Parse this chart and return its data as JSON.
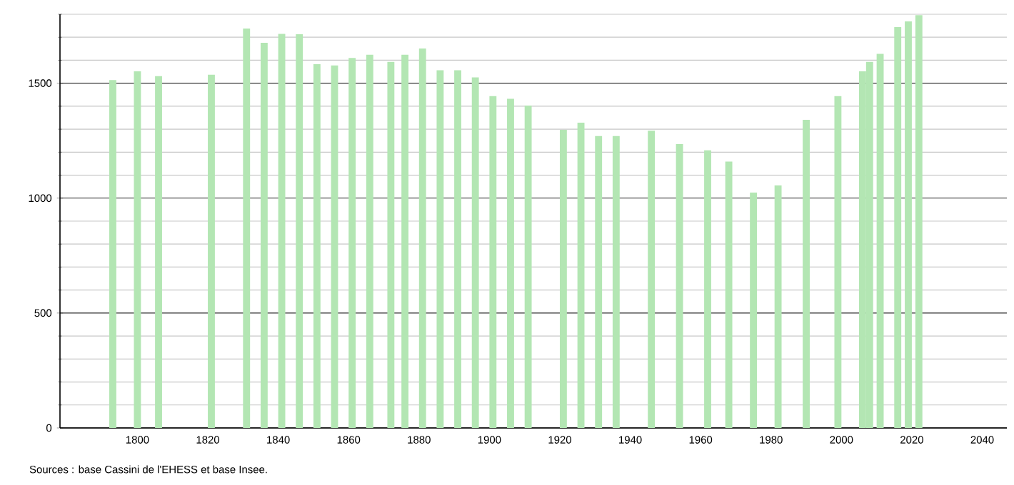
{
  "chart_data": {
    "type": "bar",
    "color": "#b3e6b3",
    "grid": "y",
    "x": [
      1793,
      1800,
      1806,
      1821,
      1831,
      1836,
      1841,
      1846,
      1851,
      1856,
      1861,
      1866,
      1872,
      1876,
      1881,
      1886,
      1891,
      1896,
      1901,
      1906,
      1911,
      1921,
      1926,
      1931,
      1936,
      1946,
      1954,
      1962,
      1968,
      1975,
      1982,
      1990,
      1999,
      2006,
      2008,
      2011,
      2016,
      2019,
      2022
    ],
    "values": [
      1514,
      1552,
      1531,
      1537,
      1738,
      1676,
      1715,
      1713,
      1583,
      1577,
      1610,
      1624,
      1593,
      1624,
      1651,
      1556,
      1556,
      1525,
      1444,
      1432,
      1403,
      1297,
      1328,
      1270,
      1270,
      1293,
      1235,
      1208,
      1159,
      1024,
      1055,
      1341,
      1444,
      1552,
      1593,
      1628,
      1744,
      1769,
      1796
    ],
    "xlim": [
      1778,
      2047
    ],
    "ylim": [
      0,
      1800
    ],
    "xticks": [
      1800,
      1820,
      1840,
      1860,
      1880,
      1900,
      1920,
      1940,
      1960,
      1980,
      2000,
      2020,
      2040
    ],
    "yticks": [
      0,
      {
        "value": 100,
        "label": null
      },
      {
        "value": 200,
        "label": null
      },
      {
        "value": 300,
        "label": null
      },
      {
        "value": 400,
        "label": null
      },
      500,
      {
        "value": 600,
        "label": null
      },
      {
        "value": 700,
        "label": null
      },
      {
        "value": 800,
        "label": null
      },
      {
        "value": 900,
        "label": null
      },
      1000,
      {
        "value": 1100,
        "label": null
      },
      {
        "value": 1200,
        "label": null
      },
      {
        "value": 1300,
        "label": null
      },
      {
        "value": 1400,
        "label": null
      },
      1500,
      {
        "value": 1600,
        "label": null
      },
      {
        "value": 1700,
        "label": null
      },
      {
        "value": 1800,
        "label": null
      }
    ],
    "annotations": [
      "Sources : base Cassini de l'EHESS et base Insee."
    ]
  }
}
